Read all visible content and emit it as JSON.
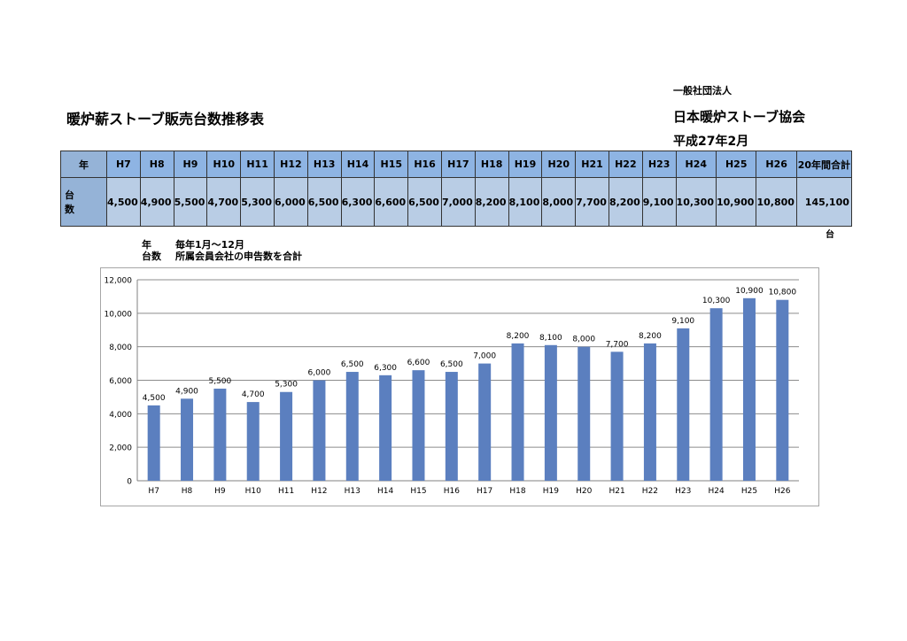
{
  "header": {
    "org_line1": "一般社団法人",
    "title": "暖炉薪ストーブ販売台数推移表",
    "org_line2": "日本暖炉ストーブ協会",
    "date": "平成27年2月"
  },
  "table": {
    "row1_label": "年",
    "row2_label_a": "台",
    "row2_label_b": "数",
    "years": [
      "H7",
      "H8",
      "H9",
      "H10",
      "H11",
      "H12",
      "H13",
      "H14",
      "H15",
      "H16",
      "H17",
      "H18",
      "H19",
      "H20",
      "H21",
      "H22",
      "H23",
      "H24",
      "H25",
      "H26"
    ],
    "values": [
      "4,500",
      "4,900",
      "5,500",
      "4,700",
      "5,300",
      "6,000",
      "6,500",
      "6,300",
      "6,600",
      "6,500",
      "7,000",
      "8,200",
      "8,100",
      "8,000",
      "7,700",
      "8,200",
      "9,100",
      "10,300",
      "10,900",
      "10,800"
    ],
    "total_header": "20年間合計",
    "total_value": "145,100",
    "unit": "台"
  },
  "notes": [
    {
      "key": "年",
      "text": "毎年1月～12月"
    },
    {
      "key": "台数",
      "text": "所属会員会社の申告数を合計"
    }
  ],
  "chart_data": {
    "type": "bar",
    "categories": [
      "H7",
      "H8",
      "H9",
      "H10",
      "H11",
      "H12",
      "H13",
      "H14",
      "H15",
      "H16",
      "H17",
      "H18",
      "H19",
      "H20",
      "H21",
      "H22",
      "H23",
      "H24",
      "H25",
      "H26"
    ],
    "values": [
      4500,
      4900,
      5500,
      4700,
      5300,
      6000,
      6500,
      6300,
      6600,
      6500,
      7000,
      8200,
      8100,
      8000,
      7700,
      8200,
      9100,
      10300,
      10900,
      10800
    ],
    "ylim": [
      0,
      12000
    ],
    "yticks": [
      0,
      2000,
      4000,
      6000,
      8000,
      10000,
      12000
    ],
    "grid": true,
    "bar_color": "#5b7fbf",
    "title": "",
    "xlabel": "",
    "ylabel": ""
  }
}
